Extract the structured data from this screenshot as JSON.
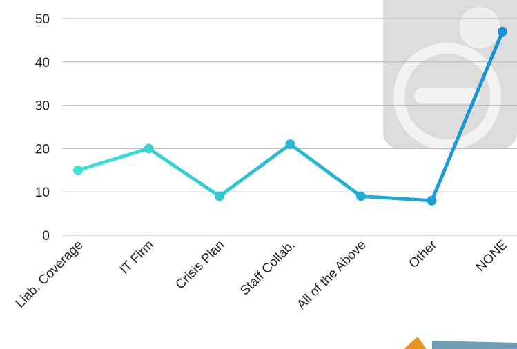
{
  "chart_data": {
    "type": "line",
    "categories": [
      "Liab. Coverage",
      "IT Firm",
      "Crisis Plan",
      "Staff Collab.",
      "All of the Above",
      "Other",
      "NONE"
    ],
    "values": [
      15,
      20,
      9,
      21,
      9,
      8,
      47
    ],
    "colors": [
      "#40e2cf",
      "#1690d8"
    ],
    "ylim": [
      0,
      50
    ],
    "yticks": [
      0,
      10,
      20,
      30,
      40,
      50
    ],
    "grid": true
  }
}
